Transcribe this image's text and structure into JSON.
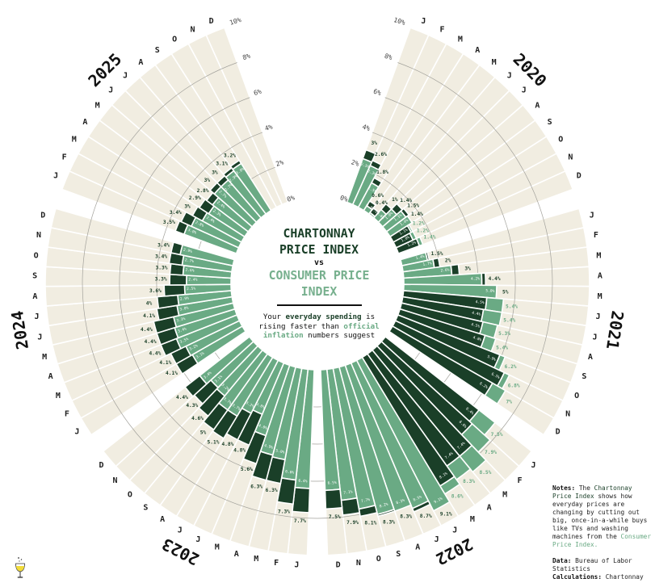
{
  "title": {
    "vs": "vs"
  },
  "subtitle": {
    "l1": {
      "a": "Your ",
      "b": "everyday spending",
      "c": " is"
    },
    "l2": {
      "a": "rising faster than ",
      "b": "official"
    },
    "l3": {
      "b": "inflation",
      "c": " numbers suggest"
    }
  },
  "notes": {
    "l1": {
      "label": "Notes:",
      "text": " The ",
      "highlight": "Chartonnay"
    },
    "l2": {
      "highlight": "Price Index",
      "text": " shows how"
    },
    "l3": "everyday prices are",
    "l4": "changing by cutting out",
    "l5": "big, once-in-a-while buys",
    "l6": "like TVs and washing",
    "l7": {
      "text": "machines from the ",
      "highlight": "Consumer"
    },
    "l8": "Price Index.",
    "l9": {
      "label": "Data:",
      "text": " Bureau of Labor"
    },
    "l10": "Statistics",
    "l11": {
      "label": "Calculations:",
      "text": " Chartonnay"
    }
  },
  "logo": {
    "icon": "wine-glass-icon"
  },
  "chart_data": {
    "type": "bar",
    "layout": "radial",
    "ylim": [
      0,
      10
    ],
    "ticks": [
      "0%",
      "2%",
      "4%",
      "6%",
      "8%",
      "10%"
    ],
    "grid": true,
    "background_color": "#f1ede1",
    "years": [
      "2020",
      "2021",
      "2022",
      "2023",
      "2024",
      "2025"
    ],
    "months": [
      "J",
      "F",
      "M",
      "A",
      "M",
      "J",
      "J",
      "A",
      "S",
      "O",
      "N",
      "D"
    ],
    "series": [
      {
        "name": "CHARTONNAY PRICE INDEX",
        "color": "#1a3f28",
        "values": {
          "2020": [
            3,
            2.6,
            1.8,
            0.6,
            0.4,
            1,
            1.4,
            1.5,
            1.4,
            1.1,
            1.0,
            1.2
          ],
          "2021": [
            1.5,
            2,
            3,
            4.4,
            5,
            4.5,
            4.4,
            4.5,
            4.8,
            5.9,
            6.5,
            6.2
          ],
          "2022": [
            6.4,
            6.6,
            7.4,
            7.4,
            8.1,
            9.1,
            8.7,
            8.3,
            8.3,
            8.1,
            7.9,
            7.5
          ],
          "2023": [
            7.7,
            7.3,
            6.3,
            6.3,
            5.6,
            4.8,
            4.8,
            5.1,
            5,
            4.6,
            4.3,
            4.4
          ],
          "2024": [
            4.1,
            4.1,
            4.4,
            4.4,
            4.4,
            4.1,
            4,
            3.6,
            3.3,
            3.3,
            3.4,
            3.4
          ],
          "2025": [
            3.5,
            3.4,
            3,
            2.9,
            2.8,
            3,
            3,
            3.1,
            3.2,
            null,
            null,
            null
          ]
        }
      },
      {
        "name": "CONSUMER PRICE INDEX",
        "color": "#6aaa84",
        "label_color": "#6aaa84",
        "values": {
          "2020": [
            2.5,
            2.3,
            1.5,
            0.3,
            0.1,
            0.6,
            1.0,
            1.3,
            1.4,
            1.2,
            1.2,
            1.4
          ],
          "2021": [
            1.4,
            1.7,
            2.6,
            4.2,
            5.0,
            5.4,
            5.4,
            5.3,
            5.4,
            6.2,
            6.8,
            7.0
          ],
          "2022": [
            7.5,
            7.9,
            8.5,
            8.3,
            8.6,
            9.1,
            8.5,
            8.3,
            8.2,
            7.7,
            7.1,
            6.5
          ],
          "2023": [
            6.4,
            6.0,
            5.0,
            4.9,
            4.0,
            3.0,
            3.2,
            3.7,
            3.7,
            3.2,
            3.1,
            3.4
          ],
          "2024": [
            3.1,
            3.2,
            3.5,
            3.4,
            3.3,
            3.0,
            2.9,
            2.5,
            2.4,
            2.6,
            2.7,
            2.9
          ],
          "2025": [
            3.0,
            2.8,
            2.4,
            2.3,
            2.4,
            2.7,
            2.7,
            2.9,
            3.0,
            null,
            null,
            null
          ]
        }
      }
    ]
  }
}
